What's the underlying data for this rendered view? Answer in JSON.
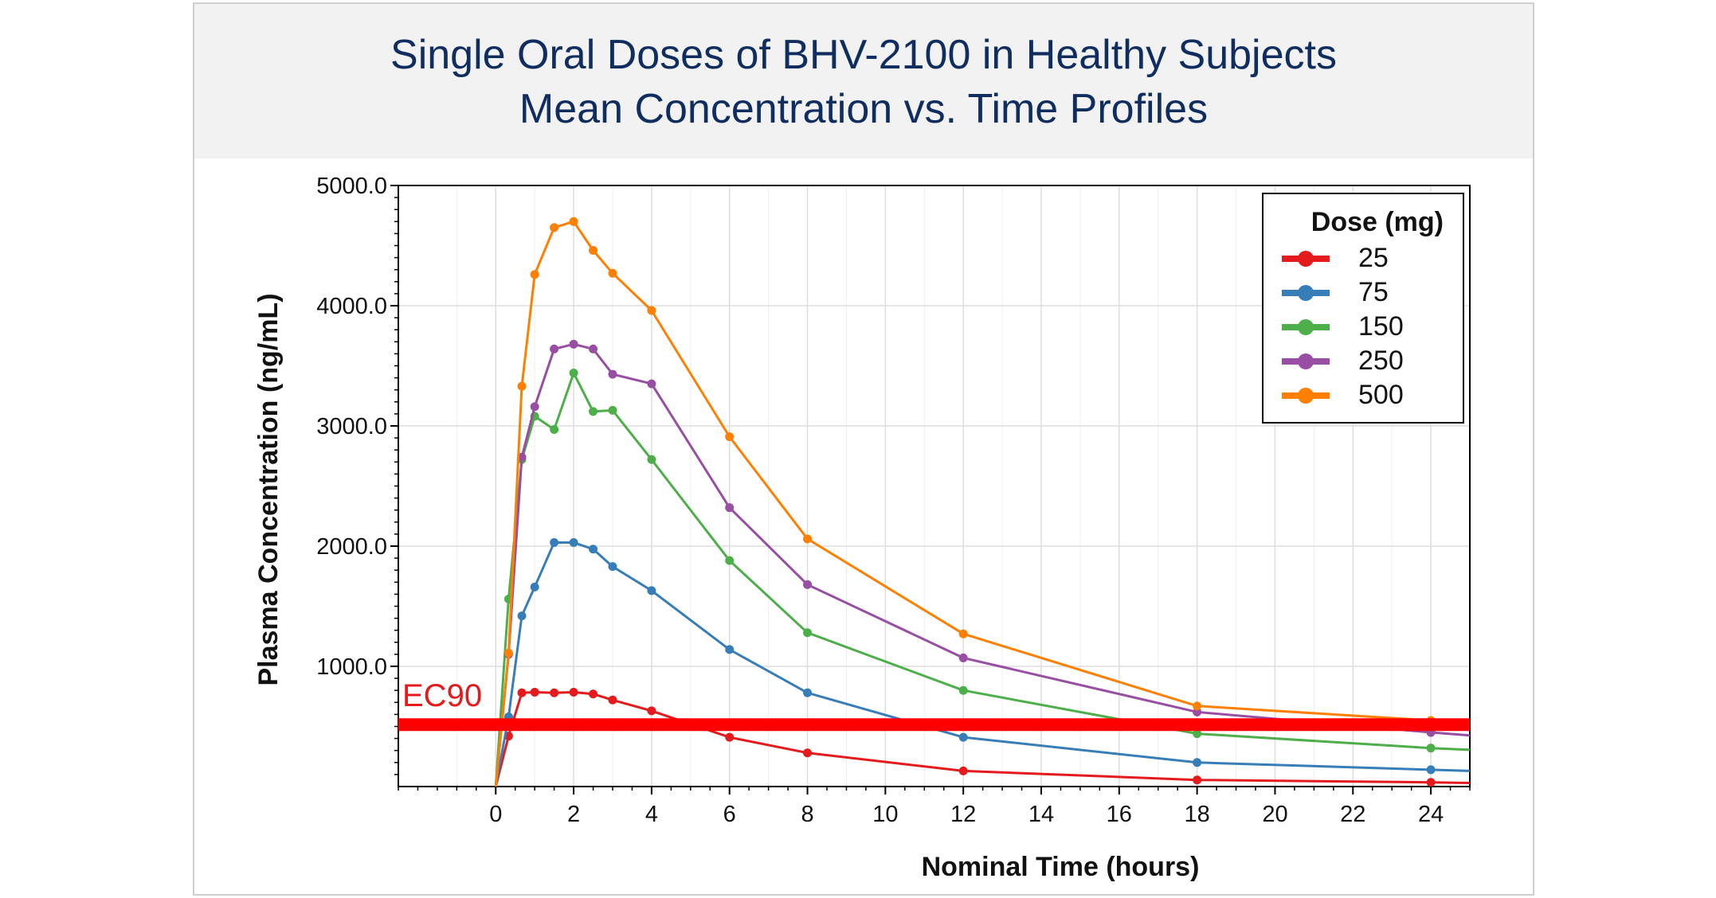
{
  "chart_data": {
    "type": "line",
    "title": "Single Oral Doses of BHV-2100 in Healthy Subjects",
    "subtitle": "Mean Concentration vs. Time Profiles",
    "xlabel": "Nominal Time (hours)",
    "ylabel": "Plasma Concentration (ng/mL)",
    "xlim": [
      -2.5,
      25
    ],
    "ylim": [
      0,
      5000
    ],
    "xticks": [
      0,
      2,
      4,
      6,
      8,
      10,
      12,
      14,
      16,
      18,
      20,
      22,
      24
    ],
    "xtick_labels": [
      "0",
      "2",
      "4",
      "6",
      "8",
      "10",
      "12",
      "14",
      "16",
      "18",
      "20",
      "22",
      "24"
    ],
    "yticks": [
      1000,
      2000,
      3000,
      4000,
      5000
    ],
    "ytick_labels": [
      "1000.0",
      "2000.0",
      "3000.0",
      "4000.0",
      "5000.0"
    ],
    "grid": true,
    "legend": {
      "title": "Dose (mg)",
      "placement": "top-right"
    },
    "reference_line": {
      "label": "EC90",
      "y": 515,
      "color": "#ff0000"
    },
    "series": [
      {
        "name": "25",
        "color": "#e41a1c",
        "x": [
          0,
          0.33,
          0.67,
          1,
          1.5,
          2,
          2.5,
          3,
          4,
          6,
          8,
          12,
          18,
          24,
          25
        ],
        "y": [
          0,
          420,
          780,
          785,
          780,
          785,
          770,
          720,
          630,
          410,
          280,
          130,
          55,
          35,
          30
        ]
      },
      {
        "name": "75",
        "color": "#377eb8",
        "x": [
          0,
          0.33,
          0.67,
          1,
          1.5,
          2,
          2.5,
          3,
          4,
          6,
          8,
          12,
          18,
          24,
          25
        ],
        "y": [
          0,
          580,
          1420,
          1660,
          2030,
          2030,
          1975,
          1830,
          1630,
          1140,
          780,
          410,
          200,
          140,
          130
        ]
      },
      {
        "name": "150",
        "color": "#4daf4a",
        "x": [
          0,
          0.33,
          0.67,
          1,
          1.5,
          2,
          2.5,
          3,
          4,
          6,
          8,
          12,
          18,
          24,
          25
        ],
        "y": [
          0,
          1560,
          2720,
          3080,
          2970,
          3440,
          3120,
          3130,
          2720,
          1880,
          1280,
          800,
          440,
          320,
          305
        ]
      },
      {
        "name": "250",
        "color": "#984ea3",
        "x": [
          0,
          0.33,
          0.67,
          1,
          1.5,
          2,
          2.5,
          3,
          4,
          6,
          8,
          12,
          18,
          24,
          25
        ],
        "y": [
          0,
          1100,
          2740,
          3160,
          3640,
          3680,
          3640,
          3430,
          3350,
          2320,
          1680,
          1070,
          620,
          450,
          425
        ]
      },
      {
        "name": "500",
        "color": "#ff7f00",
        "x": [
          0,
          0.33,
          0.67,
          1,
          1.5,
          2,
          2.5,
          3,
          4,
          6,
          8,
          12,
          18,
          24,
          25
        ],
        "y": [
          0,
          1110,
          3330,
          4260,
          4650,
          4700,
          4460,
          4270,
          3960,
          2910,
          2060,
          1270,
          670,
          550,
          540
        ]
      }
    ]
  }
}
